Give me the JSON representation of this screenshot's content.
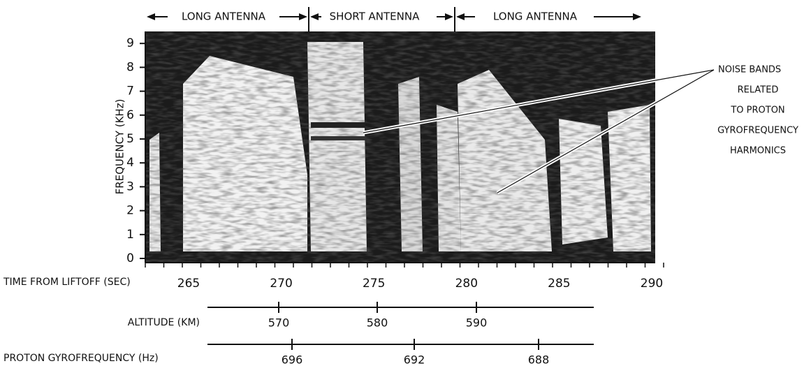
{
  "header": {
    "segments": [
      "LONG ANTENNA",
      "SHORT ANTENNA",
      "LONG ANTENNA"
    ]
  },
  "y_axis": {
    "label": "FREQUENCY (KHz)",
    "ticks": [
      0,
      1,
      2,
      3,
      4,
      5,
      6,
      7,
      8,
      9
    ]
  },
  "time_axis": {
    "label": "TIME FROM LIFTOFF (SEC)",
    "ticks": [
      265,
      270,
      275,
      280,
      285,
      290
    ]
  },
  "altitude_axis": {
    "label": "ALTITUDE (KM)",
    "ticks": [
      570,
      580,
      590
    ]
  },
  "gyro_axis": {
    "label": "PROTON GYROFREQUENCY (Hz)",
    "ticks": [
      696,
      692,
      688
    ]
  },
  "annotation": {
    "lines": [
      "NOISE BANDS",
      "RELATED",
      "TO PROTON",
      "GYROFREQUENCY",
      "HARMONICS"
    ]
  }
}
